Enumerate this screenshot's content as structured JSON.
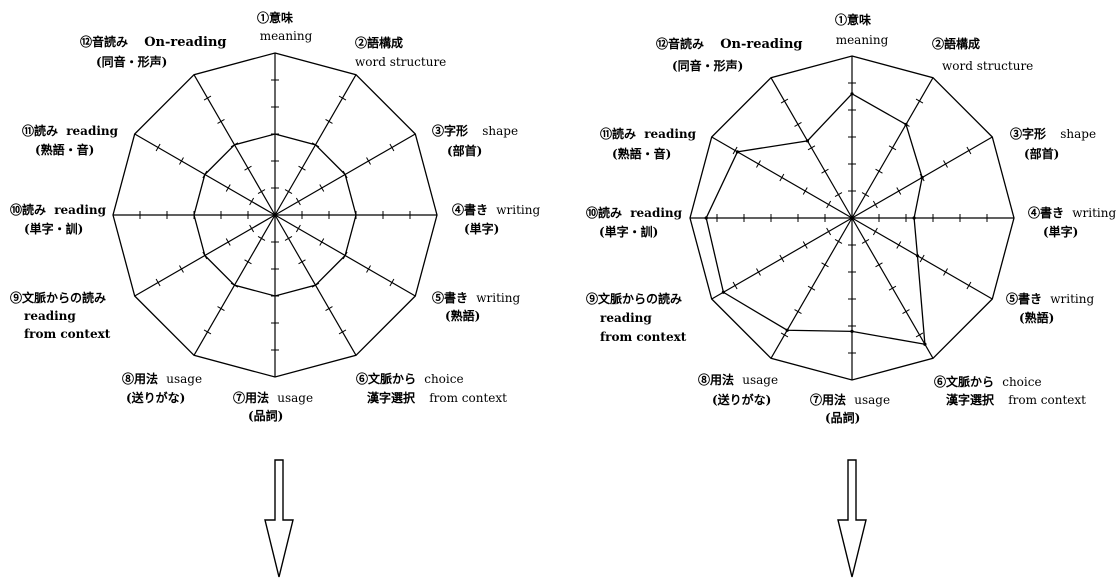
{
  "axes": [
    {
      "num": "①",
      "jp": "意味",
      "en": "meaning",
      "sub": ""
    },
    {
      "num": "②",
      "jp": "語構成",
      "en": "word structure",
      "sub": ""
    },
    {
      "num": "③",
      "jp": "字形",
      "en": "shape",
      "sub": "(部首)"
    },
    {
      "num": "④",
      "jp": "書き",
      "en": "writing",
      "sub": "(単字)"
    },
    {
      "num": "⑤",
      "jp": "書き",
      "en": "writing",
      "sub": "(熟語)"
    },
    {
      "num": "⑥",
      "jp": "文脈から",
      "en": "choice",
      "sub": "漢字選択",
      "sub_en": "from context"
    },
    {
      "num": "⑦",
      "jp": "用法",
      "en": "usage",
      "sub": "(品詞)"
    },
    {
      "num": "⑧",
      "jp": "用法",
      "en": "usage",
      "sub": "(送りがな)"
    },
    {
      "num": "⑨",
      "jp": "文脈からの読み",
      "en": "reading",
      "sub": "",
      "sub_en": "from context"
    },
    {
      "num": "⑩",
      "jp": "読み",
      "en": "reading",
      "sub": "(単字・訓)"
    },
    {
      "num": "⑪",
      "jp": "読み",
      "en": "reading",
      "sub": "(熟語・音)"
    },
    {
      "num": "⑫",
      "jp": "音読み",
      "en": "On-reading",
      "sub": "(同音・形声)"
    }
  ],
  "chart_data": [
    {
      "type": "radar",
      "ticks_per_axis": 5,
      "scale_max": 6,
      "reference_rings": [
        3,
        6
      ],
      "series": [
        {
          "values": [
            0,
            0,
            0,
            0,
            0,
            0,
            0,
            0,
            0,
            0,
            0,
            0
          ]
        }
      ],
      "arrow_below": true
    },
    {
      "type": "radar",
      "ticks_per_axis": 5,
      "scale_max": 6,
      "reference_rings": [
        6
      ],
      "series": [
        {
          "values": [
            4.6,
            4.0,
            3.0,
            2.3,
            2.8,
            5.4,
            4.2,
            4.8,
            5.5,
            5.4,
            4.9,
            3.3
          ]
        }
      ],
      "arrow_below": true
    }
  ]
}
